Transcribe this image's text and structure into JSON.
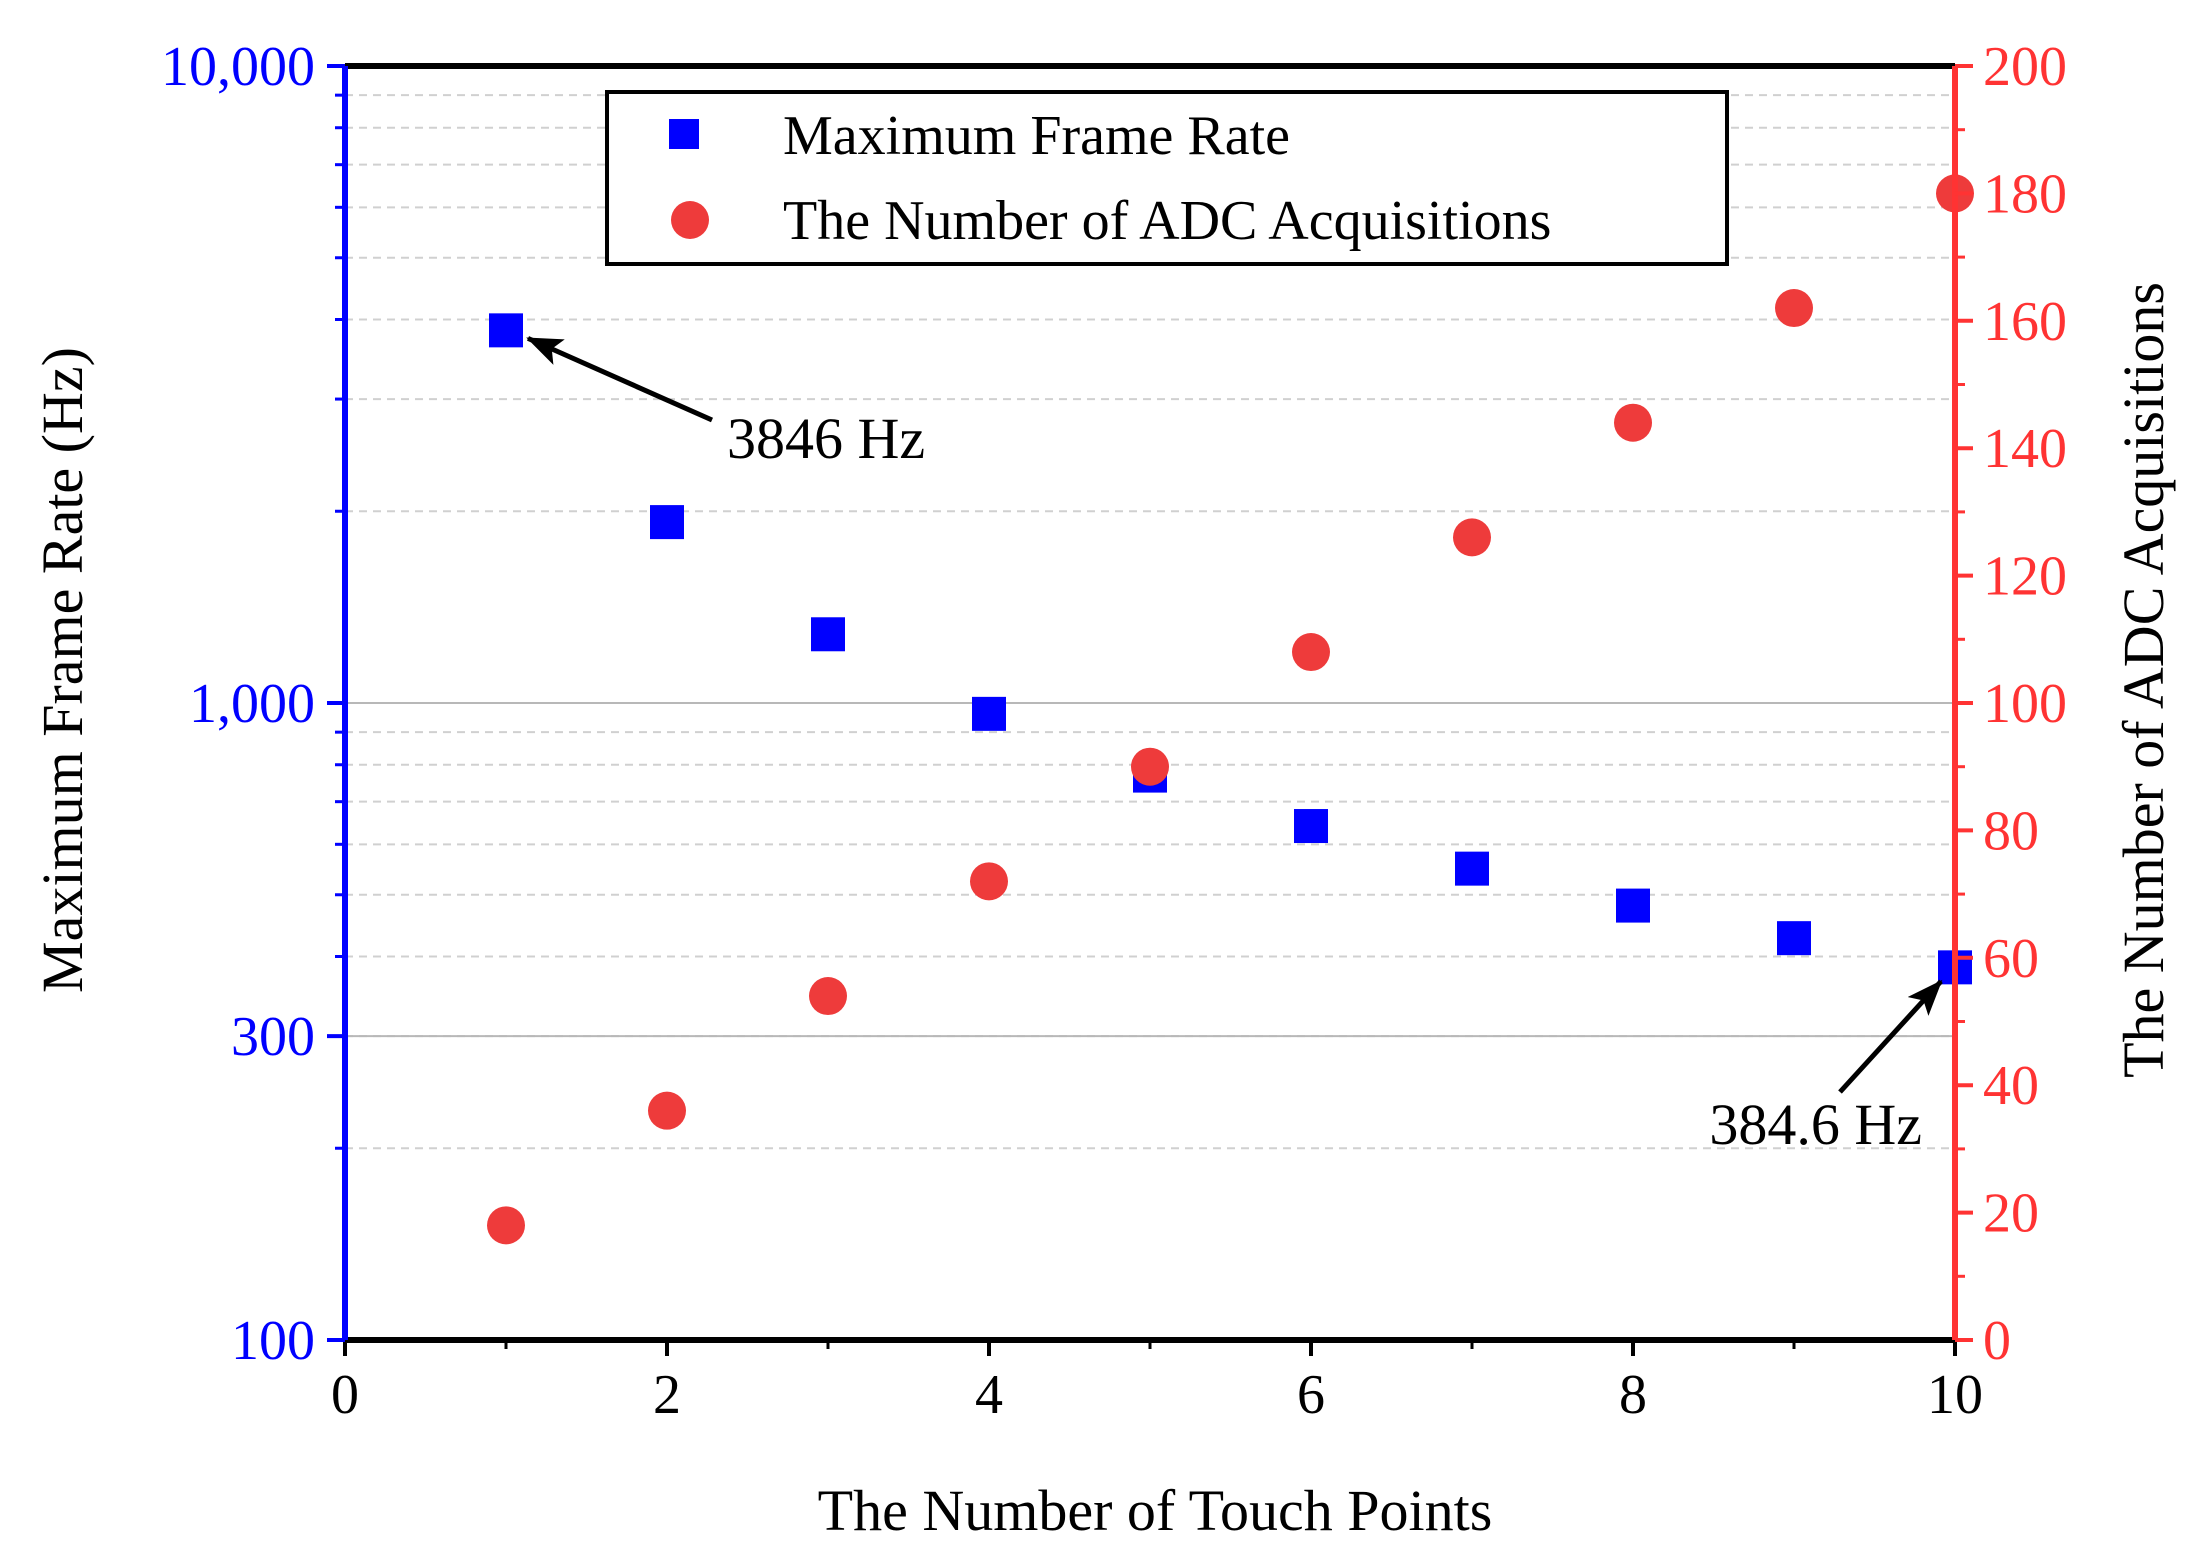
{
  "chart_data": {
    "type": "scatter",
    "xlabel": "The Number of Touch Points",
    "ylabel_left": "Maximum Frame Rate (Hz)",
    "ylabel_right": "The Number of ADC Acquisitions",
    "xlim": [
      0,
      10
    ],
    "xticks": [
      0,
      2,
      4,
      6,
      8,
      10
    ],
    "xtick_labels": [
      "0",
      "2",
      "4",
      "6",
      "8",
      "10"
    ],
    "y_left": {
      "scale": "log",
      "lim": [
        100,
        10000
      ],
      "ticks": [
        100,
        300,
        1000,
        10000
      ],
      "tick_labels": [
        "100",
        "300",
        "1,000",
        "10,000"
      ],
      "color": "#0000ff"
    },
    "y_right": {
      "scale": "linear",
      "lim": [
        0,
        200
      ],
      "ticks": [
        0,
        20,
        40,
        60,
        80,
        100,
        120,
        140,
        160,
        180,
        200
      ],
      "tick_labels": [
        "0",
        "20",
        "40",
        "60",
        "80",
        "100",
        "120",
        "140",
        "160",
        "180",
        "200"
      ],
      "color": "#ff3333"
    },
    "series": [
      {
        "name": "Maximum Frame Rate",
        "axis": "left",
        "marker": "square",
        "color": "#0000ff",
        "x": [
          1,
          2,
          3,
          4,
          5,
          6,
          7,
          8,
          9,
          10
        ],
        "y": [
          3846,
          1923,
          1282,
          961.5,
          769.2,
          641,
          549.5,
          480.8,
          427.4,
          384.6
        ]
      },
      {
        "name": "The Number of ADC Acquisitions",
        "axis": "right",
        "marker": "circle",
        "color": "#ee3b3b",
        "x": [
          1,
          2,
          3,
          4,
          5,
          6,
          7,
          8,
          9,
          10
        ],
        "y": [
          18,
          36,
          54,
          72,
          90,
          108,
          126,
          144,
          162,
          180
        ]
      }
    ],
    "annotations": [
      {
        "text": "3846 Hz",
        "x": 1,
        "y": 3846,
        "axis": "left"
      },
      {
        "text": "384.6 Hz",
        "x": 10,
        "y": 384.6,
        "axis": "left"
      }
    ],
    "legend_position": "top-center"
  }
}
